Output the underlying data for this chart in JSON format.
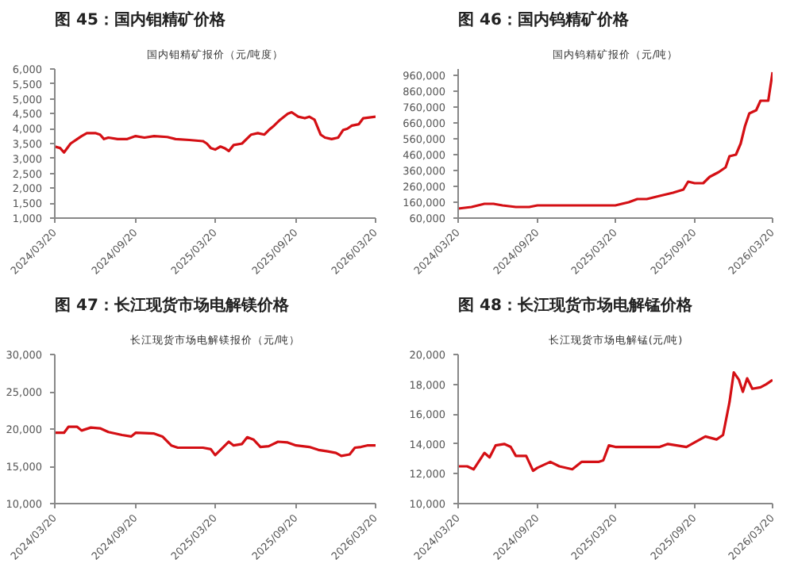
{
  "chart_data": [
    {
      "type": "line",
      "title": "图 45：国内钼精矿价格",
      "subtitle": "国内钼精矿报价（元/吨度）",
      "grid": false,
      "xlim": [
        "2024-03-20",
        "2026-03-20"
      ],
      "xticks": [
        {
          "value": "2024-03-20",
          "label": "2024/03/20"
        },
        {
          "value": "2024-09-20",
          "label": "2024/09/20"
        },
        {
          "value": "2025-03-20",
          "label": "2025/03/20"
        },
        {
          "value": "2025-09-20",
          "label": "2025/09/20"
        },
        {
          "value": "2026-03-20",
          "label": "2026/03/20"
        }
      ],
      "ylim": [
        1000,
        6000
      ],
      "yticks": [
        {
          "value": 1000,
          "label": "1,000"
        },
        {
          "value": 1500,
          "label": "1,500"
        },
        {
          "value": 2000,
          "label": "2,000"
        },
        {
          "value": 2500,
          "label": "2,500"
        },
        {
          "value": 3000,
          "label": "3,000"
        },
        {
          "value": 3500,
          "label": "3,500"
        },
        {
          "value": 4000,
          "label": "4,000"
        },
        {
          "value": 4500,
          "label": "4,500"
        },
        {
          "value": 5000,
          "label": "5,000"
        },
        {
          "value": 5500,
          "label": "5,500"
        },
        {
          "value": 6000,
          "label": "6,000"
        }
      ],
      "series": [
        {
          "color": "#d40f14",
          "x": [
            "2024-03-20",
            "2024-04-01",
            "2024-04-10",
            "2024-04-25",
            "2024-05-10",
            "2024-05-20",
            "2024-06-01",
            "2024-06-20",
            "2024-07-01",
            "2024-07-10",
            "2024-07-20",
            "2024-08-10",
            "2024-09-01",
            "2024-09-20",
            "2024-10-10",
            "2024-11-01",
            "2024-12-01",
            "2024-12-20",
            "2025-01-20",
            "2025-02-20",
            "2025-03-01",
            "2025-03-10",
            "2025-03-20",
            "2025-04-01",
            "2025-04-10",
            "2025-04-20",
            "2025-05-01",
            "2025-05-20",
            "2025-06-10",
            "2025-06-25",
            "2025-07-10",
            "2025-07-20",
            "2025-08-01",
            "2025-08-15",
            "2025-09-01",
            "2025-09-10",
            "2025-09-25",
            "2025-10-10",
            "2025-10-20",
            "2025-11-01",
            "2025-11-15",
            "2025-11-25",
            "2025-12-10",
            "2025-12-25",
            "2026-01-05",
            "2026-01-15",
            "2026-01-25",
            "2026-02-10",
            "2026-02-20",
            "2026-03-20"
          ],
          "values": [
            3400,
            3350,
            3200,
            3500,
            3650,
            3750,
            3850,
            3850,
            3800,
            3650,
            3700,
            3650,
            3650,
            3750,
            3700,
            3750,
            3720,
            3650,
            3620,
            3580,
            3500,
            3350,
            3300,
            3400,
            3350,
            3250,
            3450,
            3500,
            3800,
            3850,
            3800,
            3950,
            4100,
            4300,
            4500,
            4550,
            4400,
            4350,
            4400,
            4300,
            3800,
            3700,
            3650,
            3700,
            3950,
            4000,
            4100,
            4150,
            4350,
            4400
          ]
        }
      ]
    },
    {
      "type": "line",
      "title": "图 46：国内钨精矿价格",
      "subtitle": "国内钨精矿报价（元/吨）",
      "grid": false,
      "xlim": [
        "2024-03-20",
        "2026-03-20"
      ],
      "xticks": [
        {
          "value": "2024-03-20",
          "label": "2024/03/20"
        },
        {
          "value": "2024-09-20",
          "label": "2024/09/20"
        },
        {
          "value": "2025-03-20",
          "label": "2025/03/20"
        },
        {
          "value": "2025-09-20",
          "label": "2025/09/20"
        },
        {
          "value": "2026-03-20",
          "label": "2026/03/20"
        }
      ],
      "ylim": [
        60000,
        1000000
      ],
      "yticks": [
        {
          "value": 60000,
          "label": "60,000"
        },
        {
          "value": 160000,
          "label": "160,000"
        },
        {
          "value": 260000,
          "label": "260,000"
        },
        {
          "value": 360000,
          "label": "360,000"
        },
        {
          "value": 460000,
          "label": "460,000"
        },
        {
          "value": 560000,
          "label": "560,000"
        },
        {
          "value": 660000,
          "label": "660,000"
        },
        {
          "value": 760000,
          "label": "760,000"
        },
        {
          "value": 860000,
          "label": "860,000"
        },
        {
          "value": 960000,
          "label": "960,000"
        }
      ],
      "series": [
        {
          "color": "#d40f14",
          "x": [
            "2024-03-20",
            "2024-04-20",
            "2024-05-20",
            "2024-06-10",
            "2024-07-01",
            "2024-08-01",
            "2024-09-01",
            "2024-09-20",
            "2024-11-01",
            "2025-01-01",
            "2025-02-01",
            "2025-03-20",
            "2025-04-20",
            "2025-05-10",
            "2025-06-01",
            "2025-07-01",
            "2025-08-01",
            "2025-08-25",
            "2025-09-05",
            "2025-09-20",
            "2025-10-10",
            "2025-10-25",
            "2025-11-15",
            "2025-12-01",
            "2025-12-10",
            "2025-12-25",
            "2026-01-05",
            "2026-01-15",
            "2026-01-25",
            "2026-02-10",
            "2026-02-20",
            "2026-03-10",
            "2026-03-20"
          ],
          "values": [
            120000,
            130000,
            150000,
            150000,
            140000,
            130000,
            130000,
            140000,
            140000,
            140000,
            140000,
            140000,
            160000,
            180000,
            180000,
            200000,
            220000,
            240000,
            290000,
            280000,
            280000,
            320000,
            350000,
            380000,
            450000,
            460000,
            530000,
            640000,
            720000,
            740000,
            800000,
            800000,
            980000
          ]
        }
      ]
    },
    {
      "type": "line",
      "title": "图 47：长江现货市场电解镁价格",
      "subtitle": "长江现货市场电解镁报价（元/吨）",
      "grid": false,
      "xlim": [
        "2024-03-20",
        "2026-03-20"
      ],
      "xticks": [
        {
          "value": "2024-03-20",
          "label": "2024/03/20"
        },
        {
          "value": "2024-09-20",
          "label": "2024/09/20"
        },
        {
          "value": "2025-03-20",
          "label": "2025/03/20"
        },
        {
          "value": "2025-09-20",
          "label": "2025/09/20"
        },
        {
          "value": "2026-03-20",
          "label": "2026/03/20"
        }
      ],
      "ylim": [
        10000,
        30000
      ],
      "yticks": [
        {
          "value": 10000,
          "label": "10,000"
        },
        {
          "value": 15000,
          "label": "15,000"
        },
        {
          "value": 20000,
          "label": "20,000"
        },
        {
          "value": 25000,
          "label": "25,000"
        },
        {
          "value": 30000,
          "label": "30,000"
        }
      ],
      "series": [
        {
          "color": "#d40f14",
          "x": [
            "2024-03-20",
            "2024-04-10",
            "2024-04-20",
            "2024-05-10",
            "2024-05-20",
            "2024-06-10",
            "2024-07-01",
            "2024-07-20",
            "2024-08-20",
            "2024-09-10",
            "2024-09-20",
            "2024-11-01",
            "2024-11-20",
            "2024-12-10",
            "2024-12-25",
            "2025-02-20",
            "2025-03-10",
            "2025-03-20",
            "2025-04-01",
            "2025-04-20",
            "2025-05-01",
            "2025-05-20",
            "2025-06-01",
            "2025-06-15",
            "2025-07-01",
            "2025-07-20",
            "2025-08-10",
            "2025-09-01",
            "2025-09-20",
            "2025-10-20",
            "2025-11-10",
            "2025-12-01",
            "2025-12-20",
            "2026-01-01",
            "2026-01-20",
            "2026-02-01",
            "2026-02-15",
            "2026-03-01",
            "2026-03-20"
          ],
          "values": [
            19500,
            19500,
            20300,
            20300,
            19800,
            20200,
            20100,
            19600,
            19200,
            19000,
            19500,
            19400,
            19000,
            17800,
            17500,
            17500,
            17300,
            16500,
            17200,
            18300,
            17800,
            18000,
            18900,
            18600,
            17600,
            17700,
            18300,
            18200,
            17800,
            17600,
            17200,
            17000,
            16800,
            16400,
            16600,
            17500,
            17600,
            17800,
            17800
          ]
        }
      ]
    },
    {
      "type": "line",
      "title": "图 48：长江现货市场电解锰价格",
      "subtitle": "长江现货市场电解锰(元/吨)",
      "grid": false,
      "xlim": [
        "2024-03-20",
        "2026-03-20"
      ],
      "xticks": [
        {
          "value": "2024-03-20",
          "label": "2024/03/20"
        },
        {
          "value": "2024-09-20",
          "label": "2024/09/20"
        },
        {
          "value": "2025-03-20",
          "label": "2025/03/20"
        },
        {
          "value": "2025-09-20",
          "label": "2025/09/20"
        },
        {
          "value": "2026-03-20",
          "label": "2026/03/20"
        }
      ],
      "ylim": [
        10000,
        20000
      ],
      "yticks": [
        {
          "value": 10000,
          "label": "10,000"
        },
        {
          "value": 12000,
          "label": "12,000"
        },
        {
          "value": 14000,
          "label": "14,000"
        },
        {
          "value": 16000,
          "label": "16,000"
        },
        {
          "value": 18000,
          "label": "18,000"
        },
        {
          "value": 20000,
          "label": "20,000"
        }
      ],
      "series": [
        {
          "color": "#d40f14",
          "x": [
            "2024-03-20",
            "2024-04-10",
            "2024-04-25",
            "2024-05-20",
            "2024-06-01",
            "2024-06-15",
            "2024-07-05",
            "2024-07-20",
            "2024-08-01",
            "2024-08-25",
            "2024-09-10",
            "2024-09-20",
            "2024-10-20",
            "2024-11-10",
            "2024-12-10",
            "2025-01-01",
            "2025-02-10",
            "2025-02-20",
            "2025-03-05",
            "2025-03-20",
            "2025-05-01",
            "2025-07-01",
            "2025-07-20",
            "2025-09-01",
            "2025-09-20",
            "2025-10-15",
            "2025-11-10",
            "2025-11-25",
            "2025-12-10",
            "2025-12-20",
            "2026-01-01",
            "2026-01-10",
            "2026-01-20",
            "2026-02-01",
            "2026-02-20",
            "2026-03-05",
            "2026-03-20"
          ],
          "values": [
            12500,
            12500,
            12300,
            13400,
            13100,
            13900,
            14000,
            13800,
            13200,
            13200,
            12200,
            12400,
            12800,
            12500,
            12300,
            12800,
            12800,
            12900,
            13900,
            13800,
            13800,
            13800,
            14000,
            13800,
            14100,
            14500,
            14300,
            14600,
            16800,
            18800,
            18300,
            17500,
            18400,
            17700,
            17800,
            18000,
            18300
          ]
        }
      ]
    }
  ]
}
